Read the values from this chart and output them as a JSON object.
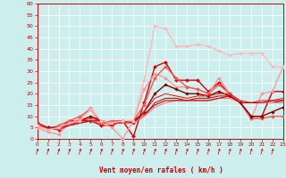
{
  "xlabel": "Vent moyen/en rafales ( km/h )",
  "bg_color": "#cceeed",
  "grid_color": "#ffffff",
  "xlim": [
    0,
    23
  ],
  "ylim": [
    0,
    60
  ],
  "yticks": [
    0,
    5,
    10,
    15,
    20,
    25,
    30,
    35,
    40,
    45,
    50,
    55,
    60
  ],
  "xticks": [
    0,
    1,
    2,
    3,
    4,
    5,
    6,
    7,
    8,
    9,
    10,
    11,
    12,
    13,
    14,
    15,
    16,
    17,
    18,
    19,
    20,
    21,
    22,
    23
  ],
  "series": [
    {
      "y": [
        7,
        5,
        4,
        8,
        8,
        8,
        6,
        6,
        8,
        1,
        16,
        32,
        34,
        26,
        26,
        26,
        21,
        25,
        20,
        16,
        10,
        10,
        21,
        21
      ],
      "color": "#dd0000",
      "lw": 1.0,
      "marker": "D",
      "ms": 2.0
    },
    {
      "y": [
        5,
        3,
        2,
        7,
        9,
        14,
        7,
        5,
        0,
        8,
        22,
        29,
        27,
        23,
        23,
        22,
        20,
        27,
        20,
        16,
        9,
        20,
        21,
        32
      ],
      "color": "#ff9999",
      "lw": 1.0,
      "marker": "D",
      "ms": 2.0
    },
    {
      "y": [
        6,
        4,
        6,
        8,
        10,
        13,
        7,
        8,
        8,
        8,
        15,
        27,
        32,
        27,
        23,
        22,
        20,
        24,
        20,
        16,
        9,
        9,
        10,
        10
      ],
      "color": "#ff5555",
      "lw": 1.0,
      "marker": "D",
      "ms": 2.0
    },
    {
      "y": [
        6,
        5,
        5,
        7,
        8,
        10,
        8,
        7,
        8,
        7,
        12,
        20,
        24,
        22,
        20,
        20,
        19,
        21,
        19,
        16,
        10,
        10,
        12,
        14
      ],
      "color": "#880000",
      "lw": 1.0,
      "marker": "D",
      "ms": 1.8
    },
    {
      "y": [
        6,
        5,
        4,
        6,
        7,
        8,
        7,
        7,
        7,
        7,
        10,
        16,
        18,
        18,
        17,
        18,
        18,
        19,
        19,
        16,
        16,
        16,
        16,
        17
      ],
      "color": "#bb1111",
      "lw": 0.8,
      "marker": null,
      "ms": 0
    },
    {
      "y": [
        6,
        5,
        4,
        6,
        7,
        8,
        7,
        7,
        7,
        7,
        10,
        14,
        16,
        17,
        17,
        17,
        17,
        18,
        18,
        16,
        16,
        16,
        16,
        16
      ],
      "color": "#ff7777",
      "lw": 0.8,
      "marker": null,
      "ms": 0
    },
    {
      "y": [
        7,
        5,
        4,
        6,
        8,
        9,
        8,
        7,
        7,
        8,
        12,
        18,
        20,
        19,
        18,
        19,
        19,
        20,
        20,
        17,
        16,
        17,
        17,
        18
      ],
      "color": "#ee2222",
      "lw": 0.8,
      "marker": null,
      "ms": 0
    },
    {
      "y": [
        6,
        5,
        5,
        6,
        7,
        8,
        8,
        7,
        8,
        8,
        11,
        15,
        17,
        17,
        17,
        17,
        17,
        18,
        19,
        16,
        16,
        16,
        17,
        17
      ],
      "color": "#cc0000",
      "lw": 0.8,
      "marker": null,
      "ms": 0
    },
    {
      "y": [
        6,
        4,
        5,
        7,
        8,
        13,
        8,
        7,
        8,
        8,
        26,
        50,
        49,
        41,
        41,
        42,
        41,
        39,
        37,
        38,
        38,
        38,
        32,
        32
      ],
      "color": "#ffbbbb",
      "lw": 1.0,
      "marker": "D",
      "ms": 2.0
    }
  ]
}
